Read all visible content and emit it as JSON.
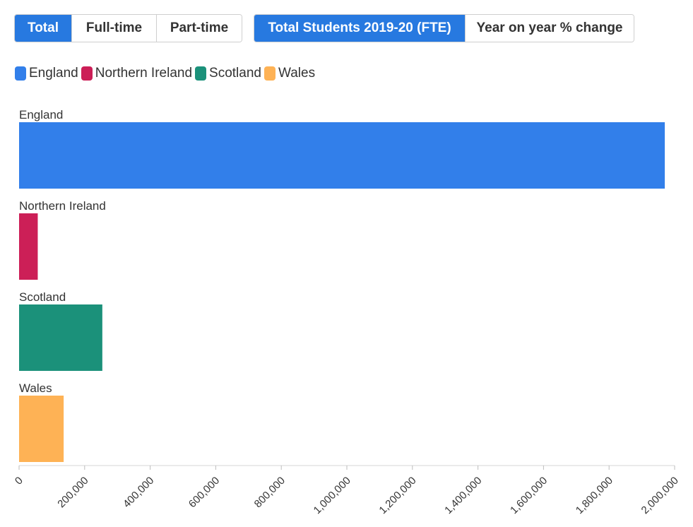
{
  "controls": {
    "mode_buttons": [
      {
        "label": "Total",
        "active": true
      },
      {
        "label": "Full-time",
        "active": false
      },
      {
        "label": "Part-time",
        "active": false
      }
    ],
    "metric_buttons": [
      {
        "label": "Total Students 2019-20 (FTE)",
        "active": true
      },
      {
        "label": "Year on year % change",
        "active": false
      }
    ]
  },
  "colors": {
    "accent": "#2779e0",
    "England": "#327fea",
    "Northern Ireland": "#cc1f57",
    "Scotland": "#1b917a",
    "Wales": "#feb255"
  },
  "chart_data": {
    "type": "bar",
    "orientation": "horizontal",
    "categories": [
      "England",
      "Northern Ireland",
      "Scotland",
      "Wales"
    ],
    "values": [
      1970000,
      57000,
      254000,
      136000
    ],
    "legend": [
      "England",
      "Northern Ireland",
      "Scotland",
      "Wales"
    ],
    "legend_position": "top-left",
    "xlim": [
      0,
      2000000
    ],
    "xticks": [
      "0",
      "200,000",
      "400,000",
      "600,000",
      "800,000",
      "1,000,000",
      "1,200,000",
      "1,400,000",
      "1,600,000",
      "1,800,000",
      "2,000,000"
    ],
    "grid": false,
    "title": "",
    "xlabel": "",
    "ylabel": ""
  }
}
